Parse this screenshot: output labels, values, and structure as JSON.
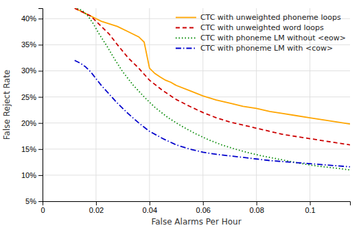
{
  "chart_data": {
    "type": "line",
    "xlabel": "False Alarms Per Hour",
    "ylabel": "False Reject Rate",
    "xlim": [
      0,
      0.115
    ],
    "ylim": [
      0.05,
      0.42
    ],
    "xticks": [
      0,
      0.02,
      0.04,
      0.06,
      0.08,
      0.1
    ],
    "yticks": [
      {
        "value": 0.05,
        "label": "5%"
      },
      {
        "value": 0.1,
        "label": "10%"
      },
      {
        "value": 0.15,
        "label": "15%"
      },
      {
        "value": 0.2,
        "label": "20%"
      },
      {
        "value": 0.25,
        "label": "25%"
      },
      {
        "value": 0.3,
        "label": "30%"
      },
      {
        "value": 0.35,
        "label": "35%"
      },
      {
        "value": 0.4,
        "label": "40%"
      }
    ],
    "grid": true,
    "legend": "upper right",
    "series": [
      {
        "name": "CTC with unweighted phoneme loops",
        "color": "#FFA500",
        "line_style": "solid",
        "x": [
          0.012,
          0.014,
          0.016,
          0.018,
          0.02,
          0.022,
          0.025,
          0.028,
          0.032,
          0.036,
          0.038,
          0.04,
          0.042,
          0.044,
          0.046,
          0.048,
          0.05,
          0.055,
          0.06,
          0.065,
          0.07,
          0.075,
          0.08,
          0.085,
          0.09,
          0.095,
          0.1,
          0.105,
          0.11,
          0.115
        ],
        "values": [
          0.42,
          0.415,
          0.41,
          0.405,
          0.4,
          0.395,
          0.39,
          0.385,
          0.375,
          0.365,
          0.355,
          0.305,
          0.295,
          0.288,
          0.282,
          0.278,
          0.272,
          0.262,
          0.252,
          0.244,
          0.238,
          0.232,
          0.228,
          0.222,
          0.218,
          0.214,
          0.21,
          0.206,
          0.202,
          0.198
        ]
      },
      {
        "name": "CTC with unweighted word loops",
        "color": "#CC0000",
        "line_style": "dashed",
        "x": [
          0.012,
          0.014,
          0.016,
          0.018,
          0.02,
          0.022,
          0.025,
          0.028,
          0.032,
          0.036,
          0.04,
          0.045,
          0.05,
          0.055,
          0.06,
          0.065,
          0.07,
          0.075,
          0.08,
          0.085,
          0.09,
          0.095,
          0.1,
          0.105,
          0.11,
          0.115
        ],
        "values": [
          0.42,
          0.415,
          0.41,
          0.405,
          0.395,
          0.385,
          0.37,
          0.35,
          0.325,
          0.305,
          0.282,
          0.262,
          0.245,
          0.232,
          0.22,
          0.21,
          0.202,
          0.196,
          0.19,
          0.184,
          0.178,
          0.174,
          0.17,
          0.166,
          0.162,
          0.158
        ]
      },
      {
        "name": "CTC with phoneme LM without <eow>",
        "color": "#008800",
        "line_style": "dotted",
        "x": [
          0.013,
          0.015,
          0.017,
          0.019,
          0.021,
          0.024,
          0.027,
          0.03,
          0.034,
          0.038,
          0.042,
          0.047,
          0.052,
          0.057,
          0.062,
          0.067,
          0.072,
          0.077,
          0.082,
          0.087,
          0.092,
          0.097,
          0.102,
          0.107,
          0.112,
          0.115
        ],
        "values": [
          0.42,
          0.415,
          0.405,
          0.39,
          0.372,
          0.348,
          0.322,
          0.298,
          0.272,
          0.25,
          0.23,
          0.21,
          0.194,
          0.18,
          0.168,
          0.158,
          0.15,
          0.143,
          0.137,
          0.132,
          0.127,
          0.122,
          0.118,
          0.115,
          0.112,
          0.11
        ]
      },
      {
        "name": "CTC with phoneme LM with <cow>",
        "color": "#0000CC",
        "line_style": "dashdot",
        "x": [
          0.012,
          0.014,
          0.016,
          0.018,
          0.02,
          0.022,
          0.025,
          0.028,
          0.032,
          0.036,
          0.04,
          0.045,
          0.05,
          0.055,
          0.06,
          0.065,
          0.07,
          0.075,
          0.08,
          0.085,
          0.09,
          0.095,
          0.1,
          0.105,
          0.11,
          0.115
        ],
        "values": [
          0.32,
          0.315,
          0.308,
          0.298,
          0.285,
          0.272,
          0.255,
          0.238,
          0.218,
          0.2,
          0.184,
          0.17,
          0.158,
          0.15,
          0.144,
          0.14,
          0.137,
          0.134,
          0.131,
          0.128,
          0.126,
          0.124,
          0.122,
          0.12,
          0.118,
          0.116
        ]
      }
    ]
  }
}
